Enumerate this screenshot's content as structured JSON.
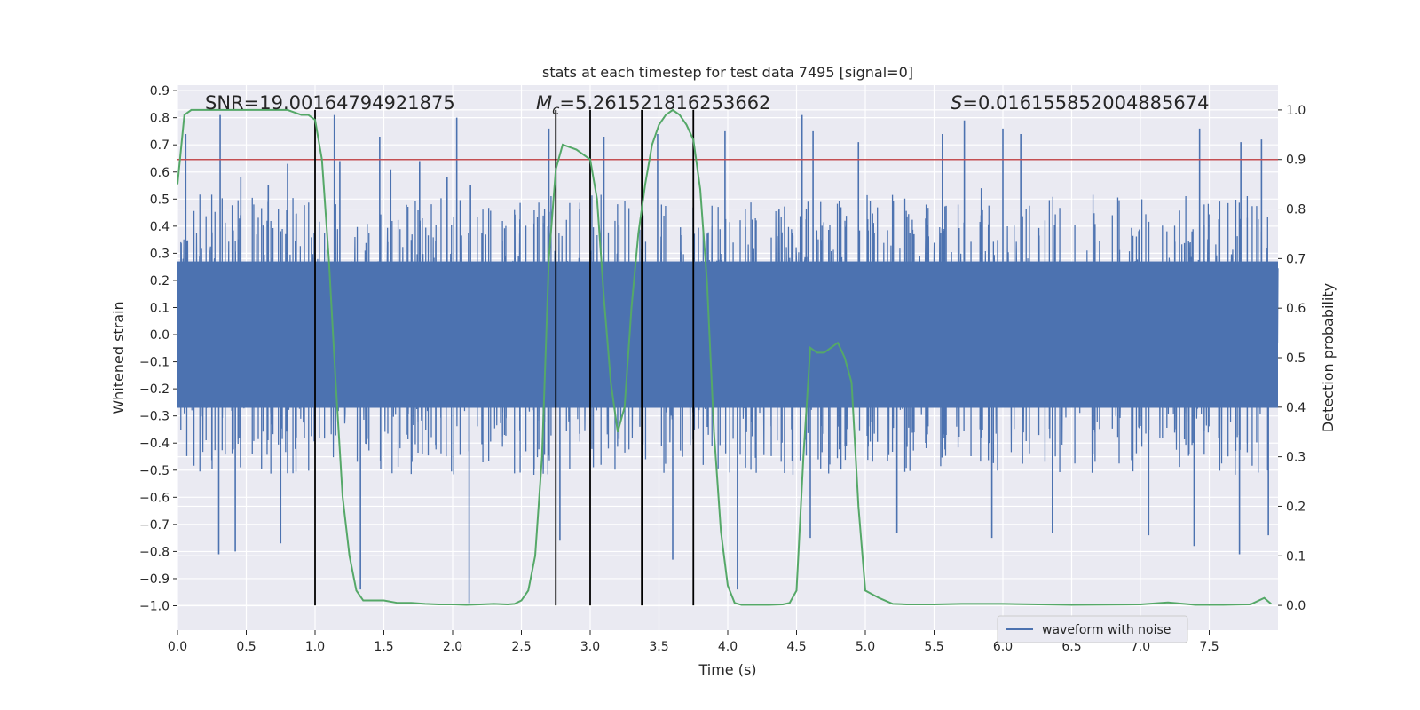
{
  "chart_data": {
    "type": "line",
    "title": "stats at each timestep for test data 7495 [signal=0]",
    "xlabel": "Time (s)",
    "ylabel_left": "Whitened strain",
    "ylabel_right": "Detection probability",
    "xlim": [
      0,
      8
    ],
    "ylim_left": [
      -1.09,
      0.92
    ],
    "ylim_right": [
      -0.05,
      1.05
    ],
    "x_ticks": [
      "0.0",
      "0.5",
      "1.0",
      "1.5",
      "2.0",
      "2.5",
      "3.0",
      "3.5",
      "4.0",
      "4.5",
      "5.0",
      "5.5",
      "6.0",
      "6.5",
      "7.0",
      "7.5"
    ],
    "y_ticks_left": [
      "0.9",
      "0.8",
      "0.7",
      "0.6",
      "0.5",
      "0.4",
      "0.3",
      "0.2",
      "0.1",
      "0.0",
      "−0.1",
      "−0.2",
      "−0.3",
      "−0.4",
      "−0.5",
      "−0.6",
      "−0.7",
      "−0.8",
      "−0.9",
      "−1.0"
    ],
    "y_ticks_right": [
      "1.0",
      "0.9",
      "0.8",
      "0.7",
      "0.6",
      "0.5",
      "0.4",
      "0.3",
      "0.2",
      "0.1",
      "0.0"
    ],
    "grid": true,
    "legend": {
      "position": "lower-right",
      "entries": [
        "waveform with noise"
      ]
    },
    "annotations": {
      "snr": "SNR=19.00164794921875",
      "mc_symbol": "M",
      "mc_sub": "c",
      "mc_value": "=5.261521816253662",
      "s_symbol": "S",
      "s_value": "=0.016155852004885674"
    },
    "waveform": {
      "name": "waveform with noise",
      "axis": "left",
      "typical_envelope": [
        -0.45,
        0.45
      ],
      "min": -0.99,
      "max": 0.82,
      "peaks": [
        [
          0.06,
          0.74
        ],
        [
          0.31,
          0.81
        ],
        [
          0.46,
          0.58
        ],
        [
          0.66,
          0.55
        ],
        [
          0.8,
          0.63
        ],
        [
          1.14,
          0.81
        ],
        [
          1.18,
          0.64
        ],
        [
          1.47,
          0.73
        ],
        [
          1.55,
          0.61
        ],
        [
          1.76,
          0.64
        ],
        [
          1.96,
          0.58
        ],
        [
          2.03,
          0.8
        ],
        [
          2.13,
          0.55
        ],
        [
          2.7,
          0.76
        ],
        [
          3.1,
          0.73
        ],
        [
          3.38,
          0.71
        ],
        [
          3.49,
          0.74
        ],
        [
          3.98,
          0.75
        ],
        [
          4.54,
          0.81
        ],
        [
          4.62,
          0.75
        ],
        [
          4.95,
          0.71
        ],
        [
          5.56,
          0.74
        ],
        [
          5.72,
          0.79
        ],
        [
          6.0,
          0.76
        ],
        [
          6.13,
          0.74
        ],
        [
          7.43,
          0.76
        ],
        [
          7.73,
          0.71
        ],
        [
          7.88,
          0.72
        ]
      ],
      "troughs": [
        [
          0.3,
          -0.81
        ],
        [
          0.42,
          -0.8
        ],
        [
          0.75,
          -0.77
        ],
        [
          1.33,
          -0.94
        ],
        [
          2.12,
          -0.99
        ],
        [
          2.78,
          -0.76
        ],
        [
          3.6,
          -0.83
        ],
        [
          4.07,
          -0.94
        ],
        [
          4.6,
          -0.75
        ],
        [
          5.23,
          -0.73
        ],
        [
          5.92,
          -0.75
        ],
        [
          6.36,
          -0.73
        ],
        [
          7.06,
          -0.74
        ],
        [
          7.39,
          -0.78
        ],
        [
          7.72,
          -0.81
        ],
        [
          7.93,
          -0.74
        ]
      ]
    },
    "threshold": {
      "axis": "right",
      "value": 0.9,
      "color": "#c44e52"
    },
    "probability": {
      "axis": "right",
      "color": "#55a868",
      "x": [
        0.0,
        0.05,
        0.1,
        0.2,
        0.3,
        0.4,
        0.5,
        0.6,
        0.7,
        0.8,
        0.9,
        0.95,
        1.0,
        1.05,
        1.1,
        1.15,
        1.2,
        1.25,
        1.3,
        1.35,
        1.4,
        1.5,
        1.6,
        1.7,
        1.8,
        1.9,
        2.0,
        2.1,
        2.2,
        2.3,
        2.4,
        2.45,
        2.5,
        2.55,
        2.6,
        2.65,
        2.7,
        2.75,
        2.8,
        2.9,
        3.0,
        3.05,
        3.1,
        3.15,
        3.2,
        3.25,
        3.3,
        3.35,
        3.4,
        3.45,
        3.5,
        3.55,
        3.6,
        3.65,
        3.7,
        3.75,
        3.8,
        3.85,
        3.9,
        3.95,
        4.0,
        4.05,
        4.1,
        4.2,
        4.3,
        4.4,
        4.45,
        4.5,
        4.55,
        4.6,
        4.65,
        4.7,
        4.75,
        4.8,
        4.85,
        4.9,
        4.95,
        5.0,
        5.1,
        5.2,
        5.3,
        5.5,
        5.7,
        6.0,
        6.5,
        7.0,
        7.2,
        7.4,
        7.6,
        7.8,
        7.9,
        7.95
      ],
      "y": [
        0.85,
        0.99,
        1.0,
        1.0,
        1.0,
        1.0,
        1.0,
        1.0,
        1.0,
        1.0,
        0.99,
        0.99,
        0.98,
        0.9,
        0.7,
        0.45,
        0.22,
        0.1,
        0.03,
        0.01,
        0.01,
        0.01,
        0.005,
        0.005,
        0.003,
        0.002,
        0.002,
        0.001,
        0.002,
        0.003,
        0.002,
        0.003,
        0.01,
        0.03,
        0.1,
        0.3,
        0.7,
        0.88,
        0.93,
        0.92,
        0.9,
        0.82,
        0.62,
        0.45,
        0.35,
        0.4,
        0.6,
        0.75,
        0.85,
        0.93,
        0.97,
        0.99,
        1.0,
        0.99,
        0.97,
        0.94,
        0.84,
        0.65,
        0.35,
        0.15,
        0.04,
        0.005,
        0.001,
        0.001,
        0.001,
        0.002,
        0.005,
        0.03,
        0.3,
        0.52,
        0.51,
        0.51,
        0.52,
        0.53,
        0.5,
        0.45,
        0.2,
        0.03,
        0.015,
        0.003,
        0.002,
        0.002,
        0.003,
        0.003,
        0.001,
        0.002,
        0.006,
        0.001,
        0.001,
        0.002,
        0.015,
        0.003
      ]
    },
    "vertical_lines": {
      "axis": "right",
      "x": [
        1.0,
        2.75,
        3.0,
        3.375,
        3.75
      ],
      "y_top": 1.0,
      "y_bottom": 0.0,
      "color": "#000000"
    },
    "colors": {
      "background": "#eaeaf2",
      "grid": "#ffffff",
      "waveform": "#4c72b0",
      "probability": "#55a868",
      "threshold": "#c44e52"
    }
  }
}
